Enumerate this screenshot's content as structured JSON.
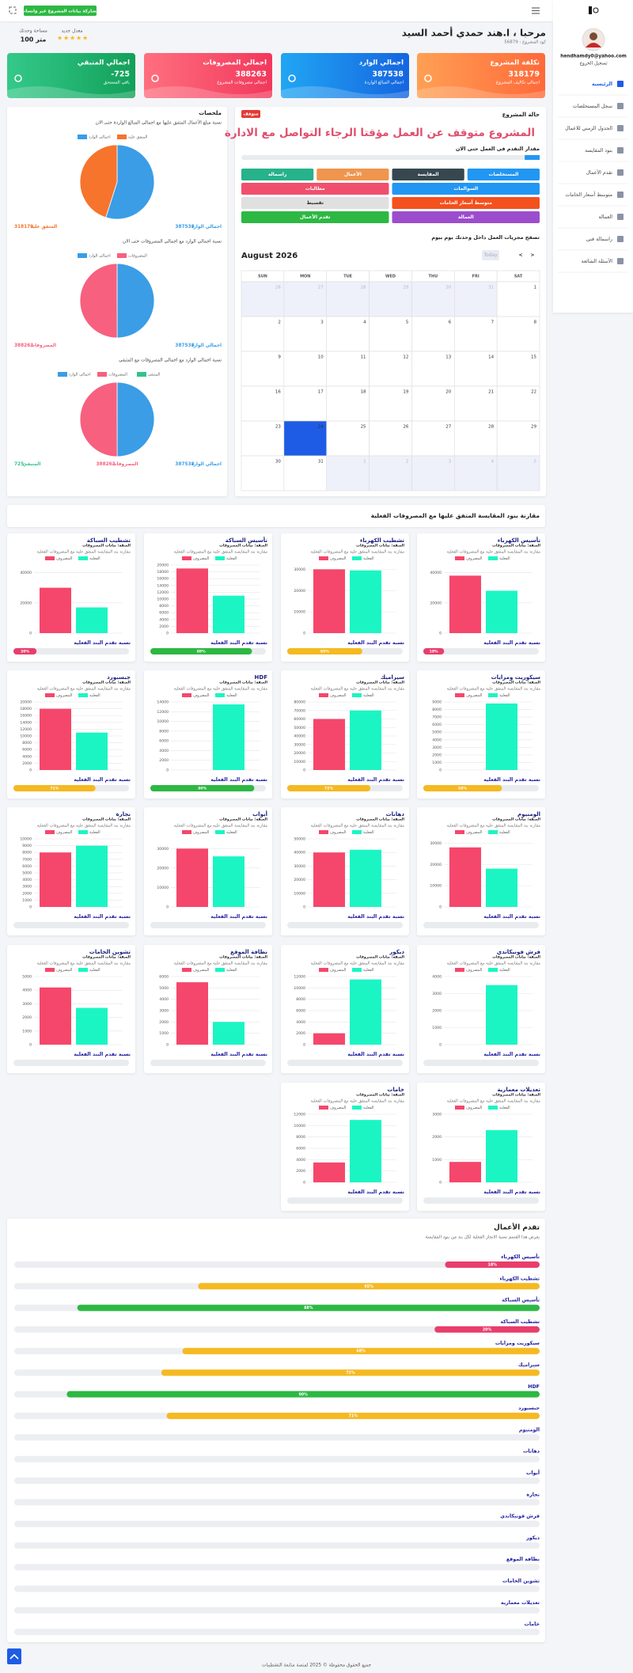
{
  "sidebar": {
    "email": "hendhamdy0@yahoo.com",
    "logout": "تسجيل الخروج",
    "nav": [
      "الرئيسية",
      "سجل المستخلصات",
      "الجدول الزمني للاعمال",
      "بنود المقايسة",
      "تقدم الأعمال",
      "متوسط أسعار الخامات",
      "العمالة",
      "راسمالة فنى",
      "الأسئلة الشائعة"
    ]
  },
  "topbar": {
    "share_button": "مشاركة بيانات المشروع عبر واتساب"
  },
  "header": {
    "greeting": "مرحبا ، ا.هند حمدي أحمد السيد",
    "project_code": "كود المشروع : 56879",
    "rating_label": "معدل جديد",
    "area_label": "مساحة وحدتك",
    "area_value": "100 متر"
  },
  "stats": [
    {
      "title": "تكلفة المشروع",
      "value": 318179,
      "caption": "اجمالي تكاليف المشروع",
      "color1": "#ff6a3a",
      "color2": "#ffa054"
    },
    {
      "title": "اجمالي الوارد",
      "value": 387538,
      "caption": "اجمالي المبالغ الواردة",
      "color1": "#1565e0",
      "color2": "#21a6f3"
    },
    {
      "title": "اجمالي المصروفات",
      "value": 388263,
      "caption": "اجمالي مصروفات المشروع",
      "color1": "#f2385c",
      "color2": "#ff6f7f"
    },
    {
      "title": "اجمالي المتبقي",
      "value": -725,
      "caption": "باقي المستحق",
      "color1": "#12a05a",
      "color2": "#34c98a"
    }
  ],
  "status": {
    "title": "حالة المشروع",
    "badge": "متوقف",
    "message": "المشروع متوقف عن العمل مؤقتا الرجاء التواصل مع الادارة",
    "progress_label": "مقدار التقدم فى العمل حتى الان",
    "progress": 5,
    "progress_color": "#2196f3",
    "buttons": [
      {
        "label": "المستخلصات",
        "color": "#2196f3",
        "span": 1
      },
      {
        "label": "المقايسة",
        "color": "#37474f",
        "span": 1
      },
      {
        "label": "الأعمال",
        "color": "#f0954e",
        "span": 1
      },
      {
        "label": "راسمالة",
        "color": "#26b28a",
        "span": 1
      },
      {
        "label": "السوالمات",
        "color": "#2196f3",
        "span": 2
      },
      {
        "label": "مطالبات",
        "color": "#f0506e",
        "span": 2
      },
      {
        "label": "متوسط أسعار الخامات",
        "color": "#f4511e",
        "span": 2
      },
      {
        "label": "تقسيط",
        "color": "#e0e0e0",
        "span": 2
      },
      {
        "label": "العمالة",
        "color": "#9c4dcc",
        "span": 2
      },
      {
        "label": "تقدم الأعمال",
        "color": "#2db843",
        "span": 2
      }
    ],
    "calendar_hint": "تصفح مجريات العمل داخل وحدتك يوم بيوم"
  },
  "calendar": {
    "title": "August 2026",
    "today": "Today",
    "prev": "<",
    "next": ">",
    "weekdays": [
      "SUN",
      "MON",
      "TUE",
      "WED",
      "THU",
      "FRI",
      "SAT"
    ],
    "weeks": [
      [
        26,
        27,
        28,
        29,
        30,
        31,
        1
      ],
      [
        2,
        3,
        4,
        5,
        6,
        7,
        8
      ],
      [
        9,
        10,
        11,
        12,
        13,
        14,
        15
      ],
      [
        16,
        17,
        18,
        19,
        20,
        21,
        22
      ],
      [
        23,
        24,
        25,
        26,
        27,
        28,
        29
      ],
      [
        30,
        31,
        1,
        2,
        3,
        4,
        5
      ]
    ],
    "selected_day": 24
  },
  "summary": {
    "title": "ملخصات"
  },
  "bar_section": {
    "title": "مقارنة بنود المقايسة المتفق عليها مع المصروفات الفعلية",
    "note": "الصفة: بيانات المصروفات",
    "subtitle": "مقارنة بند المقايسة المتفق عليه مع المصروفات الفعلية",
    "progress_label": "نسبة تقدم البند الفعلية"
  },
  "progress_section": {
    "title": "تقدم الأعمال",
    "subtitle": "يعرض هذا القسم نسبة الانجاز الفعلية لكل بند من بنود المقايسة"
  },
  "footer": {
    "text": "جميع الحقوق محفوظة © 2025 لمنصة متابعة التشطيبات"
  },
  "chart_data": [
    {
      "type": "pie",
      "title": "نسبة مبلغ الأعمال المتفق عليها مع اجمالي المبالغ الواردة حتى الان",
      "categories": [
        "اجمالي الوارد",
        "المتفق عليه"
      ],
      "values": [
        387538,
        318179
      ],
      "colors": [
        "#3a9de6",
        "#f7742d"
      ]
    },
    {
      "type": "pie",
      "title": "نسبة اجمالي الوارد مع اجمالي المصروفات حتى الان",
      "categories": [
        "اجمالي الوارد",
        "المصروفات"
      ],
      "values": [
        387538,
        388263
      ],
      "colors": [
        "#3a9de6",
        "#f7607e"
      ]
    },
    {
      "type": "pie",
      "title": "نسبة اجمالي الوارد مع اجمالي المصروفات مع المتبقي",
      "categories": [
        "اجمالي الوارد",
        "المصروفات",
        "المتبقي"
      ],
      "values": [
        387538,
        388263,
        -725
      ],
      "colors": [
        "#3a9de6",
        "#f7607e",
        "#35c28a"
      ]
    },
    {
      "type": "bar",
      "title": "تأسيس الكهرباء",
      "series": [
        {
          "name": "المصروف",
          "color": "#f5476b",
          "values": [
            38000
          ]
        },
        {
          "name": "الفعلية",
          "color": "#1bf5c4",
          "values": [
            28000
          ]
        }
      ],
      "ylim": [
        0,
        45000
      ],
      "yticks": [
        0,
        20000,
        40000
      ],
      "progress": 18,
      "progress_label": "18%",
      "progress_color": "#e83e6c"
    },
    {
      "type": "bar",
      "title": "تشطيب الكهرباء",
      "series": [
        {
          "name": "المصروف",
          "color": "#f5476b",
          "values": [
            30000
          ]
        },
        {
          "name": "الفعلية",
          "color": "#1bf5c4",
          "values": [
            29500
          ]
        }
      ],
      "ylim": [
        0,
        32000
      ],
      "yticks": [
        0,
        10000,
        20000,
        30000
      ],
      "progress": 65,
      "progress_label": "65%",
      "progress_color": "#f5b921"
    },
    {
      "type": "bar",
      "title": "تأسيس السباكة",
      "series": [
        {
          "name": "المصروف",
          "color": "#f5476b",
          "values": [
            19000
          ]
        },
        {
          "name": "الفعلية",
          "color": "#1bf5c4",
          "values": [
            11000
          ]
        }
      ],
      "ylim": [
        0,
        20000
      ],
      "yticks": [
        0,
        2000,
        4000,
        6000,
        8000,
        10000,
        12000,
        14000,
        16000,
        18000,
        20000
      ],
      "progress": 88,
      "progress_label": "88%",
      "progress_color": "#2db843"
    },
    {
      "type": "bar",
      "title": "تشطيب السباكة",
      "series": [
        {
          "name": "المصروف",
          "color": "#f5476b",
          "values": [
            30000
          ]
        },
        {
          "name": "الفعلية",
          "color": "#1bf5c4",
          "values": [
            17000
          ]
        }
      ],
      "ylim": [
        0,
        45000
      ],
      "yticks": [
        0,
        20000,
        40000
      ],
      "progress": 20,
      "progress_label": "20%",
      "progress_color": "#e83e6c"
    },
    {
      "type": "bar",
      "title": "سيكوريت ومرايات",
      "series": [
        {
          "name": "المصروف",
          "color": "#f5476b",
          "values": [
            0
          ]
        },
        {
          "name": "الفعلية",
          "color": "#1bf5c4",
          "values": [
            8800
          ]
        }
      ],
      "ylim": [
        0,
        9000
      ],
      "yticks": [
        0,
        1000,
        2000,
        3000,
        4000,
        5000,
        6000,
        7000,
        8000,
        9000
      ],
      "progress": 68,
      "progress_label": "68%",
      "progress_color": "#f5b921"
    },
    {
      "type": "bar",
      "title": "سيراميك",
      "series": [
        {
          "name": "المصروف",
          "color": "#f5476b",
          "values": [
            60000
          ]
        },
        {
          "name": "الفعلية",
          "color": "#1bf5c4",
          "values": [
            70000
          ]
        }
      ],
      "ylim": [
        0,
        80000
      ],
      "yticks": [
        0,
        10000,
        20000,
        30000,
        40000,
        50000,
        60000,
        70000,
        80000
      ],
      "progress": 72,
      "progress_label": "72%",
      "progress_color": "#f5b921"
    },
    {
      "type": "bar",
      "title": "HDF",
      "series": [
        {
          "name": "المصروف",
          "color": "#f5476b",
          "values": [
            0
          ]
        },
        {
          "name": "الفعلية",
          "color": "#1bf5c4",
          "values": [
            13500
          ]
        }
      ],
      "ylim": [
        0,
        14000
      ],
      "yticks": [
        0,
        2000,
        4000,
        6000,
        8000,
        10000,
        12000,
        14000
      ],
      "progress": 90,
      "progress_label": "90%",
      "progress_color": "#2db843"
    },
    {
      "type": "bar",
      "title": "جبسبورد",
      "series": [
        {
          "name": "المصروف",
          "color": "#f5476b",
          "values": [
            18000
          ]
        },
        {
          "name": "الفعلية",
          "color": "#1bf5c4",
          "values": [
            11000
          ]
        }
      ],
      "ylim": [
        0,
        20000
      ],
      "yticks": [
        0,
        2000,
        4000,
        6000,
        8000,
        10000,
        12000,
        14000,
        16000,
        18000,
        20000
      ],
      "progress": 71,
      "progress_label": "71%",
      "progress_color": "#f5b921"
    },
    {
      "type": "bar",
      "title": "الومنيوم",
      "series": [
        {
          "name": "المصروف",
          "color": "#f5476b",
          "values": [
            28000
          ]
        },
        {
          "name": "الفعلية",
          "color": "#1bf5c4",
          "values": [
            18000
          ]
        }
      ],
      "ylim": [
        0,
        32000
      ],
      "yticks": [
        0,
        10000,
        20000,
        30000
      ],
      "progress": 0
    },
    {
      "type": "bar",
      "title": "دهانات",
      "series": [
        {
          "name": "المصروف",
          "color": "#f5476b",
          "values": [
            40000
          ]
        },
        {
          "name": "الفعلية",
          "color": "#1bf5c4",
          "values": [
            42000
          ]
        }
      ],
      "ylim": [
        0,
        50000
      ],
      "yticks": [
        0,
        10000,
        20000,
        30000,
        40000,
        50000
      ],
      "progress": 0
    },
    {
      "type": "bar",
      "title": "أبواب",
      "series": [
        {
          "name": "المصروف",
          "color": "#f5476b",
          "values": [
            30000
          ]
        },
        {
          "name": "الفعلية",
          "color": "#1bf5c4",
          "values": [
            26000
          ]
        }
      ],
      "ylim": [
        0,
        35000
      ],
      "yticks": [
        0,
        10000,
        20000,
        30000
      ],
      "progress": 0
    },
    {
      "type": "bar",
      "title": "نجارة",
      "series": [
        {
          "name": "المصروف",
          "color": "#f5476b",
          "values": [
            8000
          ]
        },
        {
          "name": "الفعلية",
          "color": "#1bf5c4",
          "values": [
            9000
          ]
        }
      ],
      "ylim": [
        0,
        10000
      ],
      "yticks": [
        0,
        1000,
        2000,
        3000,
        4000,
        5000,
        6000,
        7000,
        8000,
        9000,
        10000
      ],
      "progress": 0
    },
    {
      "type": "bar",
      "title": "فرش فونيكاندي",
      "series": [
        {
          "name": "المصروف",
          "color": "#f5476b",
          "values": [
            0
          ]
        },
        {
          "name": "الفعلية",
          "color": "#1bf5c4",
          "values": [
            3500
          ]
        }
      ],
      "ylim": [
        0,
        4000
      ],
      "yticks": [
        0,
        1000,
        2000,
        3000,
        4000
      ],
      "progress": 0
    },
    {
      "type": "bar",
      "title": "ديكور",
      "series": [
        {
          "name": "المصروف",
          "color": "#f5476b",
          "values": [
            2000
          ]
        },
        {
          "name": "الفعلية",
          "color": "#1bf5c4",
          "values": [
            11500
          ]
        }
      ],
      "ylim": [
        0,
        12000
      ],
      "yticks": [
        0,
        2000,
        4000,
        6000,
        8000,
        10000,
        12000
      ],
      "progress": 0
    },
    {
      "type": "bar",
      "title": "نظافة الموقع",
      "series": [
        {
          "name": "المصروف",
          "color": "#f5476b",
          "values": [
            5500
          ]
        },
        {
          "name": "الفعلية",
          "color": "#1bf5c4",
          "values": [
            2000
          ]
        }
      ],
      "ylim": [
        0,
        6000
      ],
      "yticks": [
        0,
        1000,
        2000,
        3000,
        4000,
        5000,
        6000
      ],
      "progress": 0
    },
    {
      "type": "bar",
      "title": "تشوين الخامات",
      "series": [
        {
          "name": "المصروف",
          "color": "#f5476b",
          "values": [
            4200
          ]
        },
        {
          "name": "الفعلية",
          "color": "#1bf5c4",
          "values": [
            2700
          ]
        }
      ],
      "ylim": [
        0,
        5000
      ],
      "yticks": [
        0,
        1000,
        2000,
        3000,
        4000,
        5000
      ],
      "progress": 0
    },
    {
      "type": "bar",
      "title": "تعديلات معمارية",
      "series": [
        {
          "name": "المصروف",
          "color": "#f5476b",
          "values": [
            900
          ]
        },
        {
          "name": "الفعلية",
          "color": "#1bf5c4",
          "values": [
            2300
          ]
        }
      ],
      "ylim": [
        0,
        3000
      ],
      "yticks": [
        0,
        1000,
        2000,
        3000
      ],
      "progress": 0
    },
    {
      "type": "bar",
      "title": "خامات",
      "series": [
        {
          "name": "المصروف",
          "color": "#f5476b",
          "values": [
            3500
          ]
        },
        {
          "name": "الفعلية",
          "color": "#1bf5c4",
          "values": [
            11000
          ]
        }
      ],
      "ylim": [
        0,
        12000
      ],
      "yticks": [
        0,
        2000,
        4000,
        6000,
        8000,
        10000,
        12000
      ],
      "progress": 0
    }
  ]
}
